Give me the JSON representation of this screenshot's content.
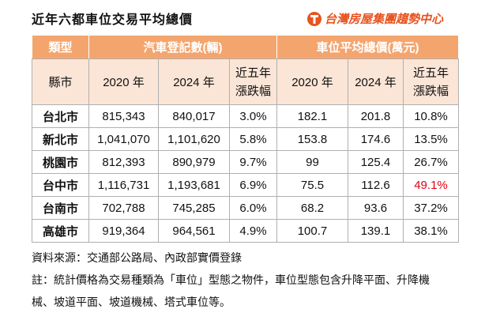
{
  "title": "近年六都車位交易平均總價",
  "logo": "台灣房屋集團趨勢中心",
  "table": {
    "group_header": [
      "類型",
      "汽車登記數(輛)",
      "車位平均總價(萬元)"
    ],
    "sub_header": [
      "縣市",
      "2020 年",
      "2024 年",
      "近五年漲跌幅",
      "2020 年",
      "2024 年",
      "近五年漲跌幅"
    ],
    "rows": [
      [
        "台北市",
        "815,343",
        "840,017",
        "3.0%",
        "182.1",
        "201.8",
        "10.8%"
      ],
      [
        "新北市",
        "1,041,070",
        "1,101,620",
        "5.8%",
        "153.8",
        "174.6",
        "13.5%"
      ],
      [
        "桃園市",
        "812,393",
        "890,979",
        "9.7%",
        "99",
        "125.4",
        "26.7%"
      ],
      [
        "台中市",
        "1,116,731",
        "1,193,681",
        "6.9%",
        "75.5",
        "112.6",
        "49.1%"
      ],
      [
        "台南市",
        "702,788",
        "745,285",
        "6.0%",
        "68.2",
        "93.6",
        "37.2%"
      ],
      [
        "高雄市",
        "919,364",
        "964,561",
        "4.9%",
        "100.7",
        "139.1",
        "38.1%"
      ]
    ],
    "highlight": {
      "row": 3,
      "col": 6,
      "color": "#e60012"
    }
  },
  "notes": [
    "資料來源：交通部公路局、內政部實價登錄",
    "註：統計價格為交易種類為「車位」型態之物件，車位型態包含升降平面、升降機械、坡道平面、坡道機械、塔式車位等。"
  ]
}
